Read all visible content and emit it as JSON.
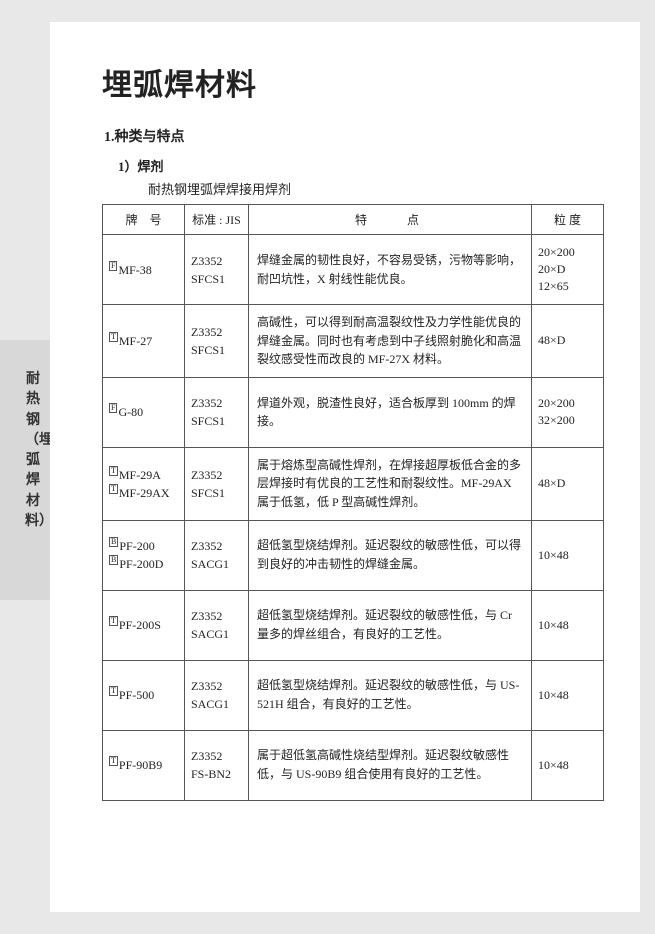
{
  "title": "埋弧焊材料",
  "section": "1.种类与特点",
  "subsection": "1）焊剂",
  "subdesc": "耐热钢埋弧焊焊接用焊剂",
  "sidetab": "耐热钢（埋弧焊材料）",
  "headers": {
    "brand": "牌　号",
    "std": "标准 : JIS",
    "feat": "特　　　　点",
    "grain": "粒 度"
  },
  "rows": [
    {
      "brand_prefix": "F",
      "brand": "MF-38",
      "std": "Z3352\nSFCS1",
      "feat": "焊缝金属的韧性良好，不容易受锈，污物等影响，耐凹坑性，X 射线性能优良。",
      "grain": "20×200\n20×D\n12×65"
    },
    {
      "brand_prefix": "T",
      "brand": "MF-27",
      "std": "Z3352\nSFCS1",
      "feat": "高碱性，可以得到耐高温裂纹性及力学性能优良的焊缝金属。同时也有考虑到中子线照射脆化和高温裂纹感受性而改良的 MF-27X 材料。",
      "grain": "48×D"
    },
    {
      "brand_prefix": "F",
      "brand": "G-80",
      "std": "Z3352\nSFCS1",
      "feat": "焊道外观，脱渣性良好，适合板厚到 100mm 的焊接。",
      "grain": "20×200\n32×200"
    },
    {
      "brand_multi": [
        {
          "prefix": "T",
          "name": "MF-29A"
        },
        {
          "prefix": "T",
          "name": "MF-29AX"
        }
      ],
      "std": "Z3352\nSFCS1",
      "feat": "属于熔炼型高碱性焊剂，在焊接超厚板低合金的多层焊接时有优良的工艺性和耐裂纹性。MF-29AX 属于低氢，低 P 型高碱性焊剂。",
      "grain": "48×D"
    },
    {
      "brand_multi": [
        {
          "prefix": "B",
          "name": "PF-200"
        },
        {
          "prefix": "B",
          "name": "PF-200D"
        }
      ],
      "std": "Z3352\nSACG1",
      "feat": "超低氢型烧结焊剂。延迟裂纹的敏感性低，可以得到良好的冲击韧性的焊缝金属。",
      "grain": "10×48"
    },
    {
      "brand_prefix": "T",
      "brand": "PF-200S",
      "std": "Z3352\nSACG1",
      "feat": "超低氢型烧结焊剂。延迟裂纹的敏感性低，与 Cr 量多的焊丝组合，有良好的工艺性。",
      "grain": "10×48"
    },
    {
      "brand_prefix": "T",
      "brand": "PF-500",
      "std": "Z3352\nSACG1",
      "feat": "超低氢型烧结焊剂。延迟裂纹的敏感性低，与 US-521H 组合，有良好的工艺性。",
      "grain": "10×48"
    },
    {
      "brand_prefix": "T",
      "brand": "PF-90B9",
      "std": "Z3352\nFS-BN2",
      "feat": "属于超低氢高碱性烧结型焊剂。延迟裂纹敏感性低，与 US-90B9 组合使用有良好的工艺性。",
      "grain": "10×48"
    }
  ]
}
